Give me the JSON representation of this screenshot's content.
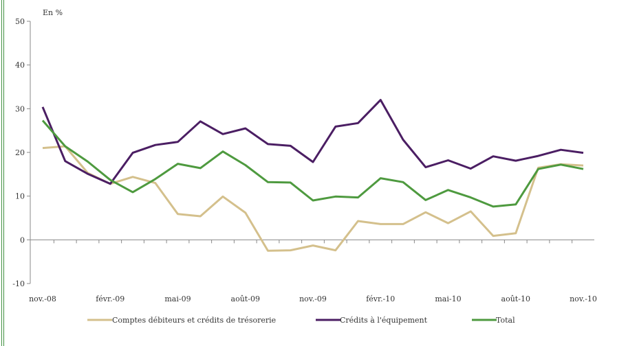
{
  "chart_data": {
    "type": "line",
    "unit_label": "En %",
    "ylim": [
      -10,
      50
    ],
    "yticks": [
      -10,
      0,
      10,
      20,
      30,
      40,
      50
    ],
    "x_tick_labels": [
      "nov.-08",
      "févr.-09",
      "mai-09",
      "août-09",
      "nov.-09",
      "févr.-10",
      "mai-10",
      "août-10",
      "nov.-10"
    ],
    "x_tick_label_indices": [
      0,
      3,
      6,
      9,
      12,
      15,
      18,
      21,
      24
    ],
    "n_points": 25,
    "legend_position": "bottom",
    "series": [
      {
        "name": "Comptes débiteurs et crédits de trésorerie",
        "color": "#d4c08c",
        "values": [
          21.0,
          21.4,
          15.3,
          12.8,
          14.4,
          13.0,
          5.9,
          5.4,
          9.9,
          6.2,
          -2.5,
          -2.4,
          -1.3,
          -2.4,
          4.3,
          3.6,
          3.6,
          6.3,
          3.8,
          6.5,
          0.9,
          1.5,
          16.5,
          17.3,
          17.0
        ]
      },
      {
        "name": "Crédits à l'équipement",
        "color": "#4b1e63",
        "values": [
          30.4,
          18.0,
          15.1,
          12.8,
          19.9,
          21.7,
          22.4,
          27.1,
          24.2,
          25.5,
          21.9,
          21.5,
          17.8,
          25.9,
          26.7,
          32.0,
          22.9,
          16.6,
          18.2,
          16.3,
          19.1,
          18.1,
          19.2,
          20.6,
          19.9
        ]
      },
      {
        "name": "Total",
        "color": "#4e9a3f",
        "values": [
          27.3,
          21.4,
          17.9,
          13.7,
          10.9,
          13.9,
          17.4,
          16.4,
          20.2,
          17.1,
          13.2,
          13.1,
          9.0,
          9.9,
          9.7,
          14.1,
          13.2,
          9.1,
          11.4,
          9.7,
          7.6,
          8.1,
          16.2,
          17.2,
          16.2
        ]
      }
    ]
  }
}
